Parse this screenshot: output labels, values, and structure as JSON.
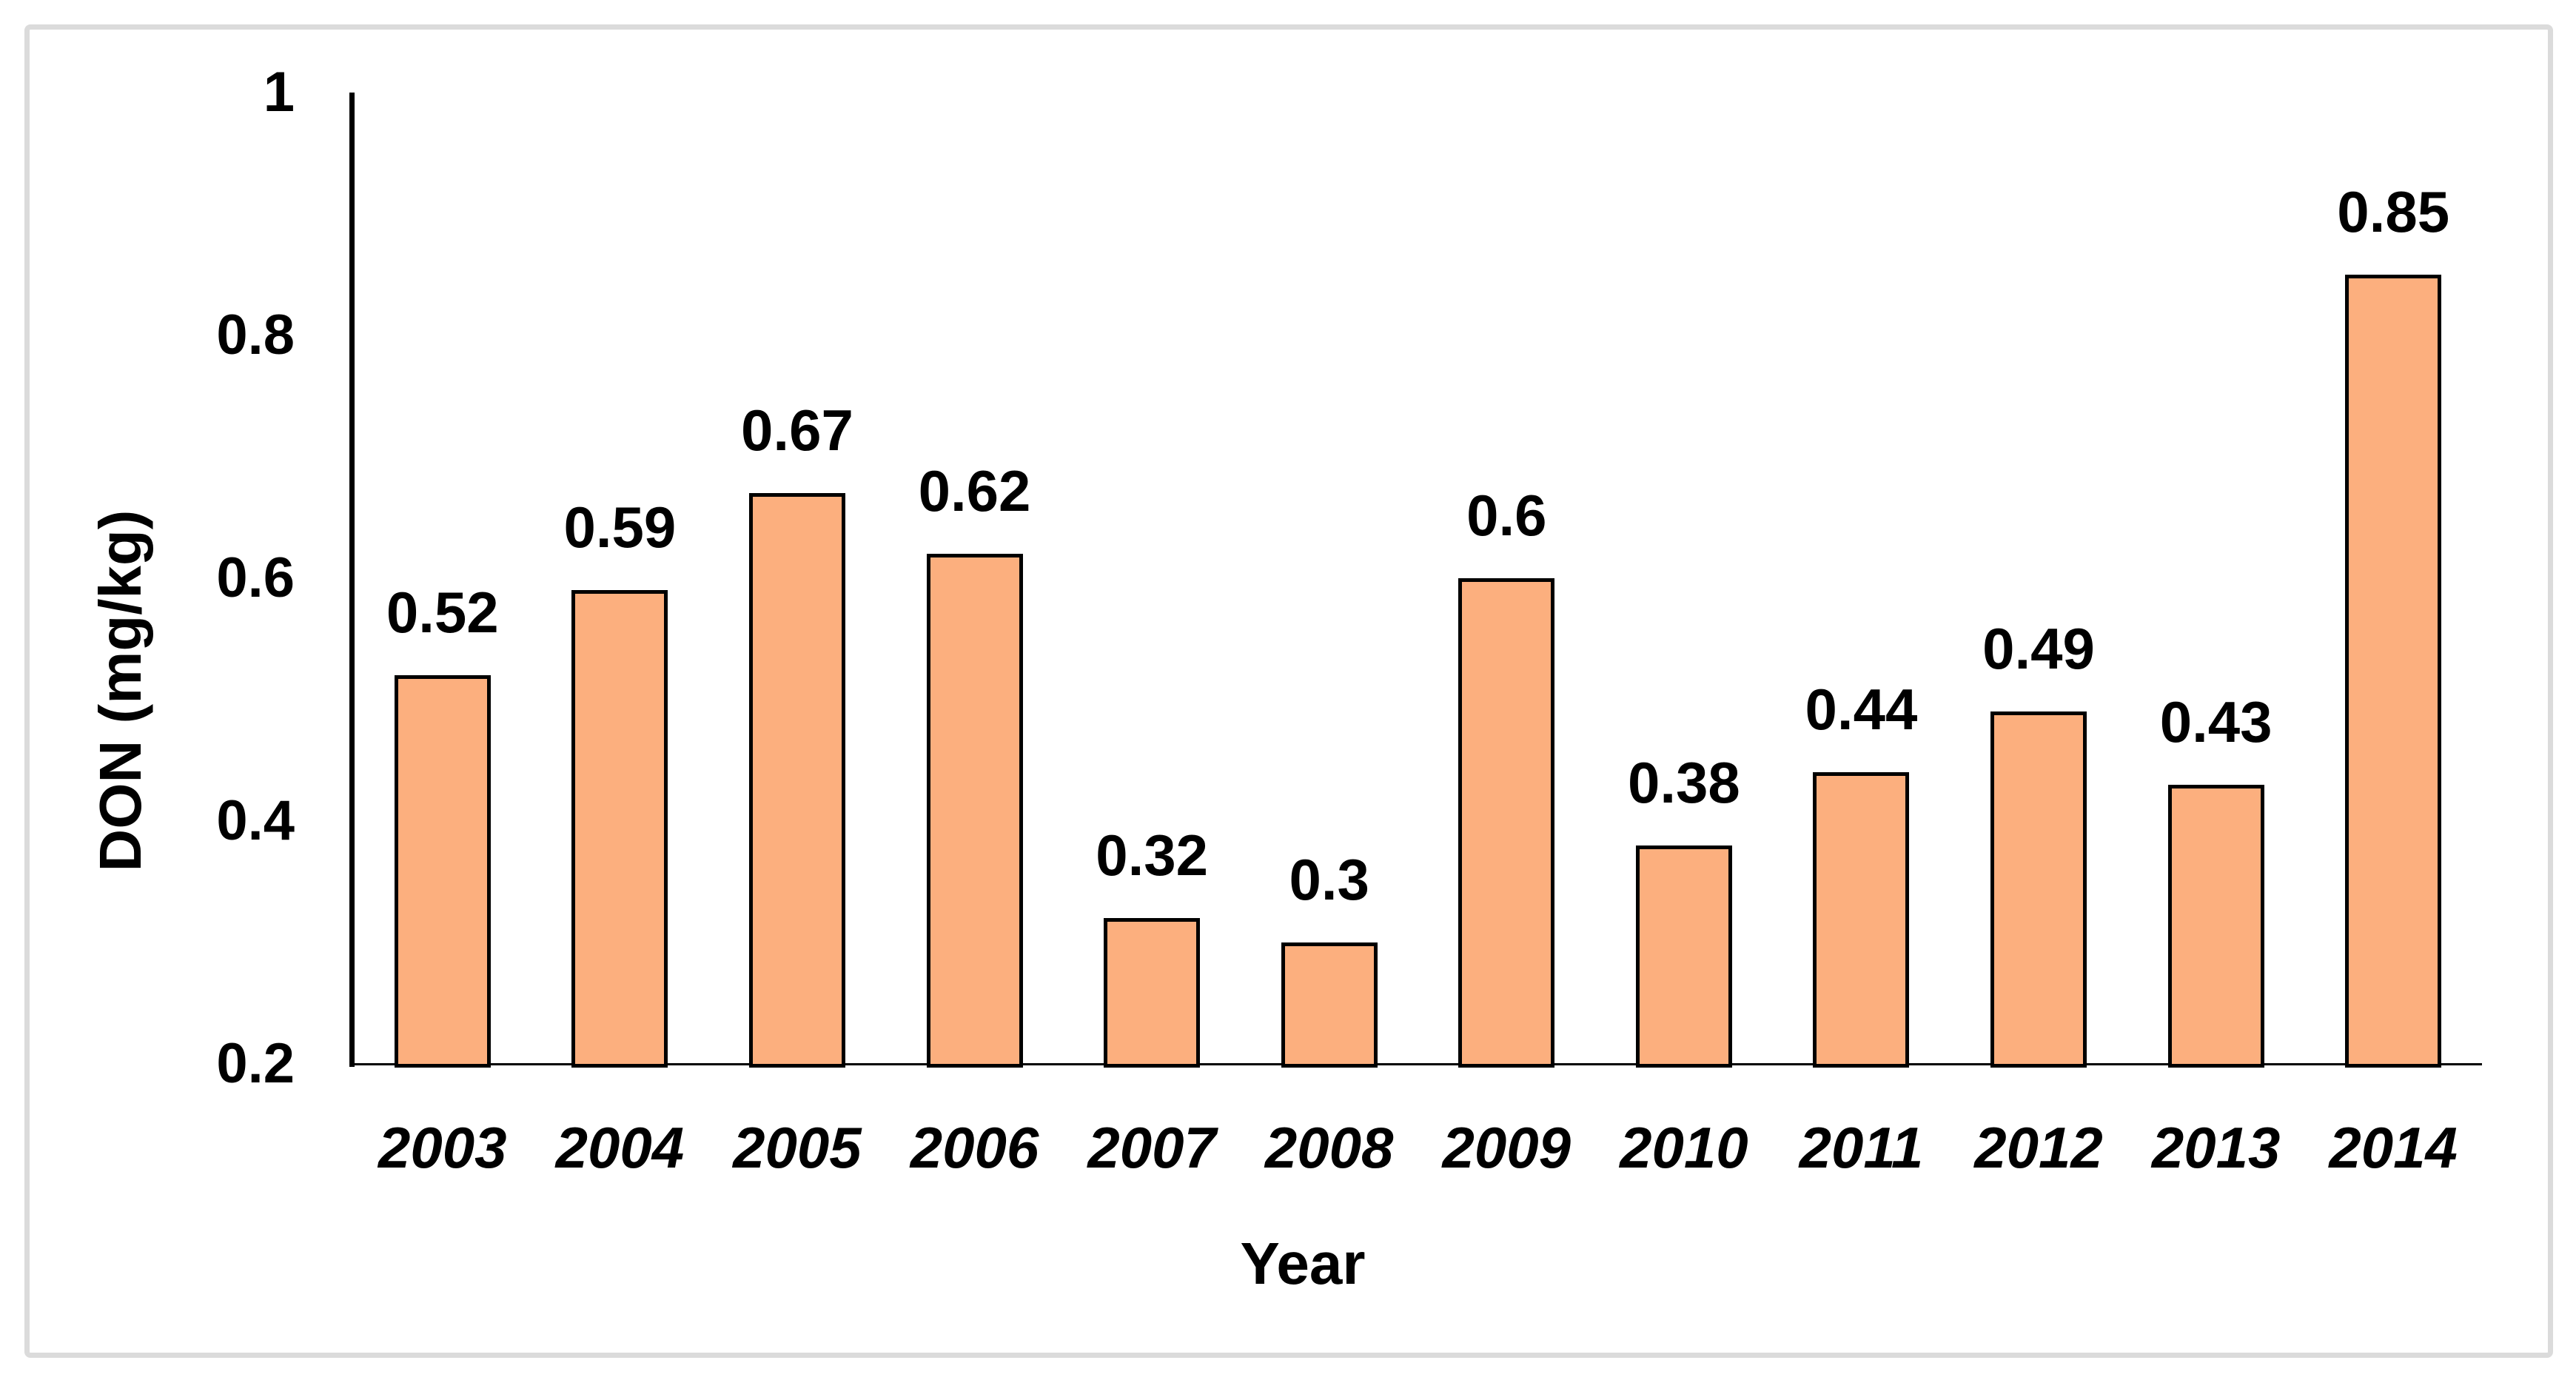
{
  "chart_data": {
    "type": "bar",
    "title": "",
    "xlabel": "Year",
    "ylabel": "DON (mg/kg)",
    "categories": [
      "2003",
      "2004",
      "2005",
      "2006",
      "2007",
      "2008",
      "2009",
      "2010",
      "2011",
      "2012",
      "2013",
      "2014"
    ],
    "values": [
      0.52,
      0.59,
      0.67,
      0.62,
      0.32,
      0.3,
      0.6,
      0.38,
      0.44,
      0.49,
      0.43,
      0.85
    ],
    "data_labels": [
      "0.52",
      "0.59",
      "0.67",
      "0.62",
      "0.32",
      "0.3",
      "0.6",
      "0.38",
      "0.44",
      "0.49",
      "0.43",
      "0.85"
    ],
    "ylim": [
      0.2,
      1
    ],
    "yticks": [
      1,
      0.8,
      0.6,
      0.4,
      0.2
    ],
    "ytick_labels": [
      "1",
      "0.8",
      "0.6",
      "0.4",
      "0.2"
    ],
    "grid": false,
    "legend": false,
    "bar_fill_color": "#FCAF7E",
    "bar_border_color": "#000000",
    "axis_line_color": "#000000",
    "frame_border_color": "#DBDBDB",
    "text_color": "#000000"
  }
}
